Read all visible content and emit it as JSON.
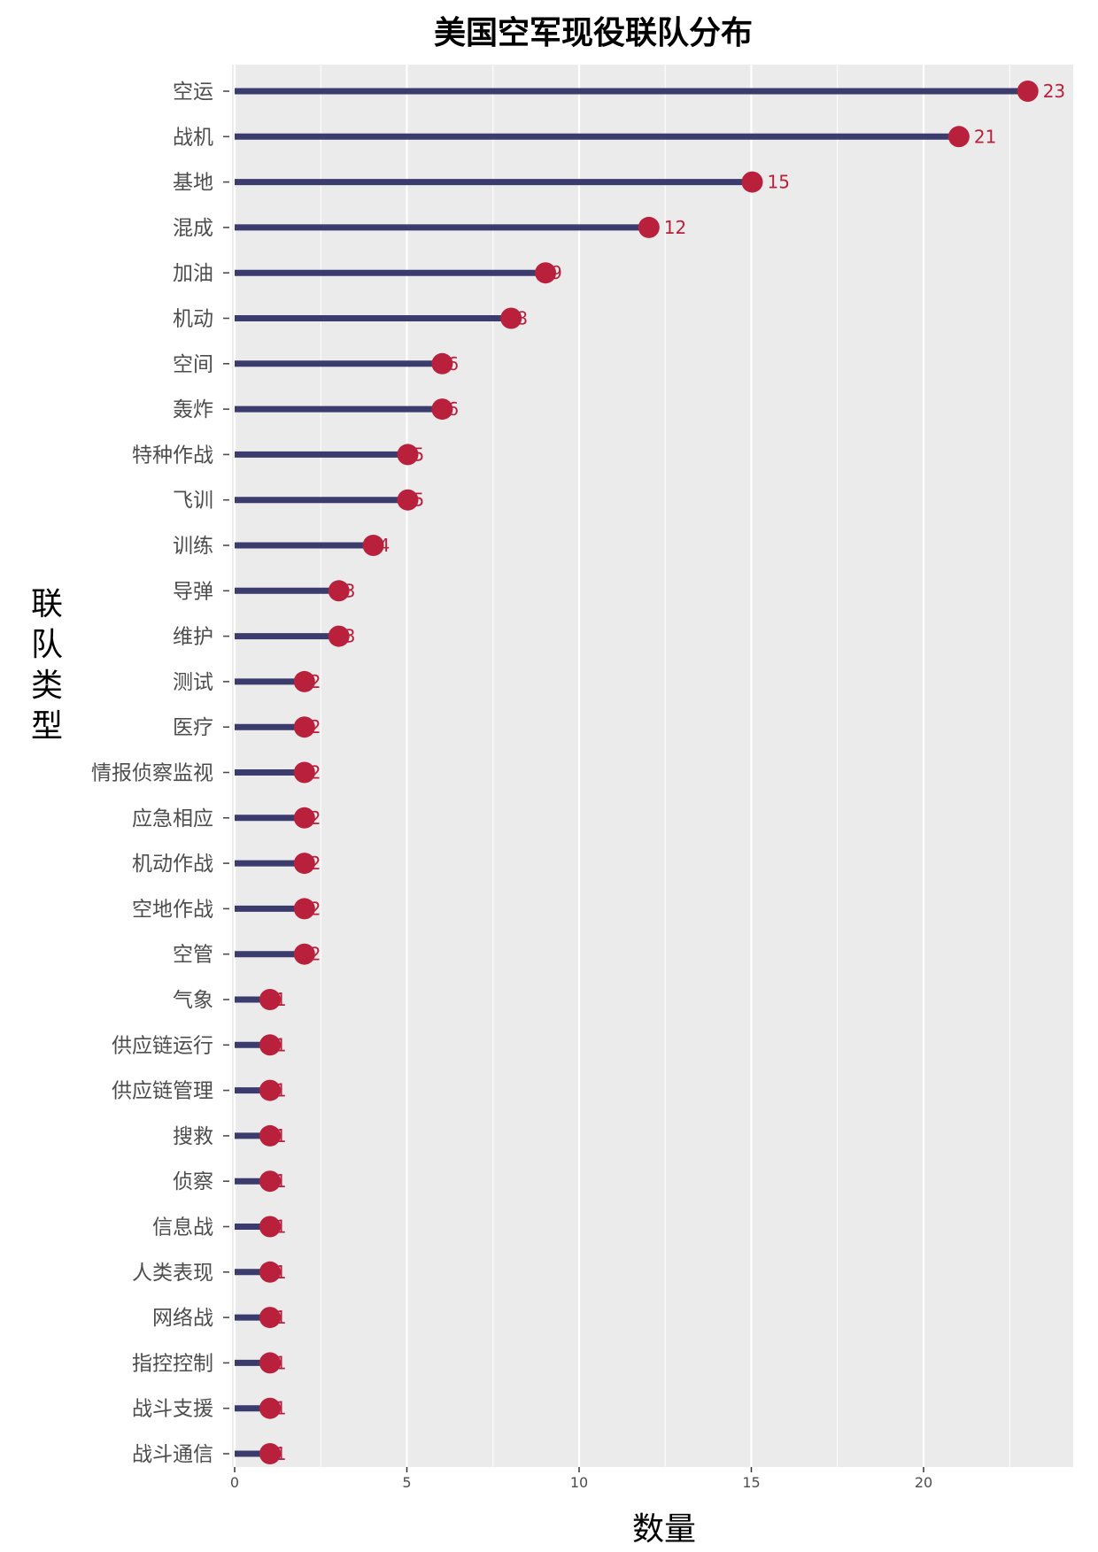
{
  "chart_data": {
    "type": "lollipop",
    "title": "美国空军现役联队分布",
    "xlabel": "数量",
    "ylabel": "联\n队\n类\n型",
    "xlim": [
      0,
      24.3
    ],
    "xticks": [
      0,
      5,
      10,
      15,
      20
    ],
    "grid": true,
    "stem_color": "#3b3b6d",
    "point_color": "#b8203b",
    "label_color": "#b8203b",
    "panel_color": "#ebebeb",
    "categories": [
      "空运",
      "战机",
      "基地",
      "混成",
      "加油",
      "机动",
      "空间",
      "轰炸",
      "特种作战",
      "飞训",
      "训练",
      "导弹",
      "维护",
      "测试",
      "医疗",
      "情报侦察监视",
      "应急相应",
      "机动作战",
      "空地作战",
      "空管",
      "气象",
      "供应链运行",
      "供应链管理",
      "搜救",
      "侦察",
      "信息战",
      "人类表现",
      "网络战",
      "指控控制",
      "战斗支援",
      "战斗通信"
    ],
    "values": [
      23,
      21,
      15,
      12,
      9,
      8,
      6,
      6,
      5,
      5,
      4,
      3,
      3,
      2,
      2,
      2,
      2,
      2,
      2,
      2,
      1,
      1,
      1,
      1,
      1,
      1,
      1,
      1,
      1,
      1,
      1
    ]
  }
}
